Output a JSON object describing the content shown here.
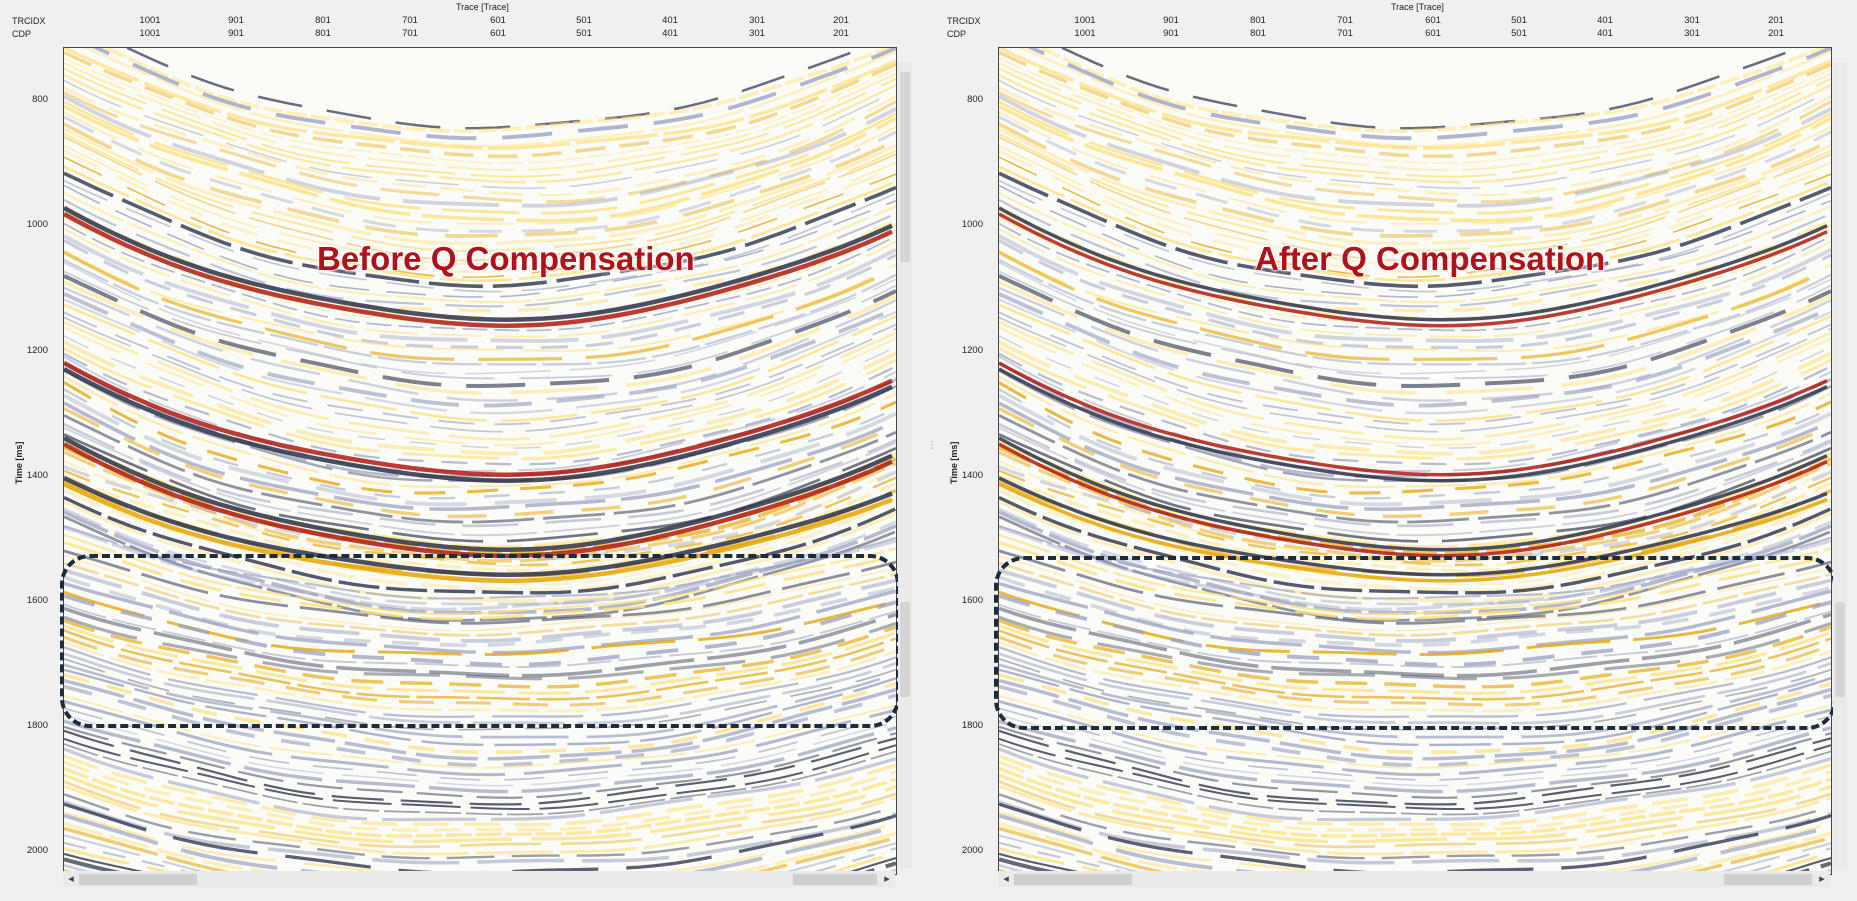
{
  "axis": {
    "x_title": "Trace [Trace]",
    "header_row1_label": "TRCIDX",
    "header_row2_label": "CDP",
    "x_ticks": [
      {
        "trcidx": "1001",
        "cdp": "1001"
      },
      {
        "trcidx": "901",
        "cdp": "901"
      },
      {
        "trcidx": "801",
        "cdp": "801"
      },
      {
        "trcidx": "701",
        "cdp": "701"
      },
      {
        "trcidx": "601",
        "cdp": "601"
      },
      {
        "trcidx": "501",
        "cdp": "501"
      },
      {
        "trcidx": "401",
        "cdp": "401"
      },
      {
        "trcidx": "301",
        "cdp": "301"
      },
      {
        "trcidx": "201",
        "cdp": "201"
      }
    ],
    "y_title": "Time [ms]",
    "y_ticks": [
      "800",
      "1000",
      "1200",
      "1400",
      "1600",
      "1800",
      "2000"
    ]
  },
  "panels": [
    {
      "id": "before",
      "title": "Before Q Compensation"
    },
    {
      "id": "after",
      "title": "After Q Compensation"
    }
  ],
  "colors": {
    "peak_strong": "#b01a10",
    "peak": "#e8a300",
    "peak_light": "#ffe07a",
    "trough": "#2a3048",
    "trough_light": "#9aa0c0",
    "title": "#b0111a",
    "roi": "#1d2b3a"
  },
  "icons": {
    "scroll_left": "◂",
    "scroll_right": "▸",
    "splitter": "⋮"
  }
}
